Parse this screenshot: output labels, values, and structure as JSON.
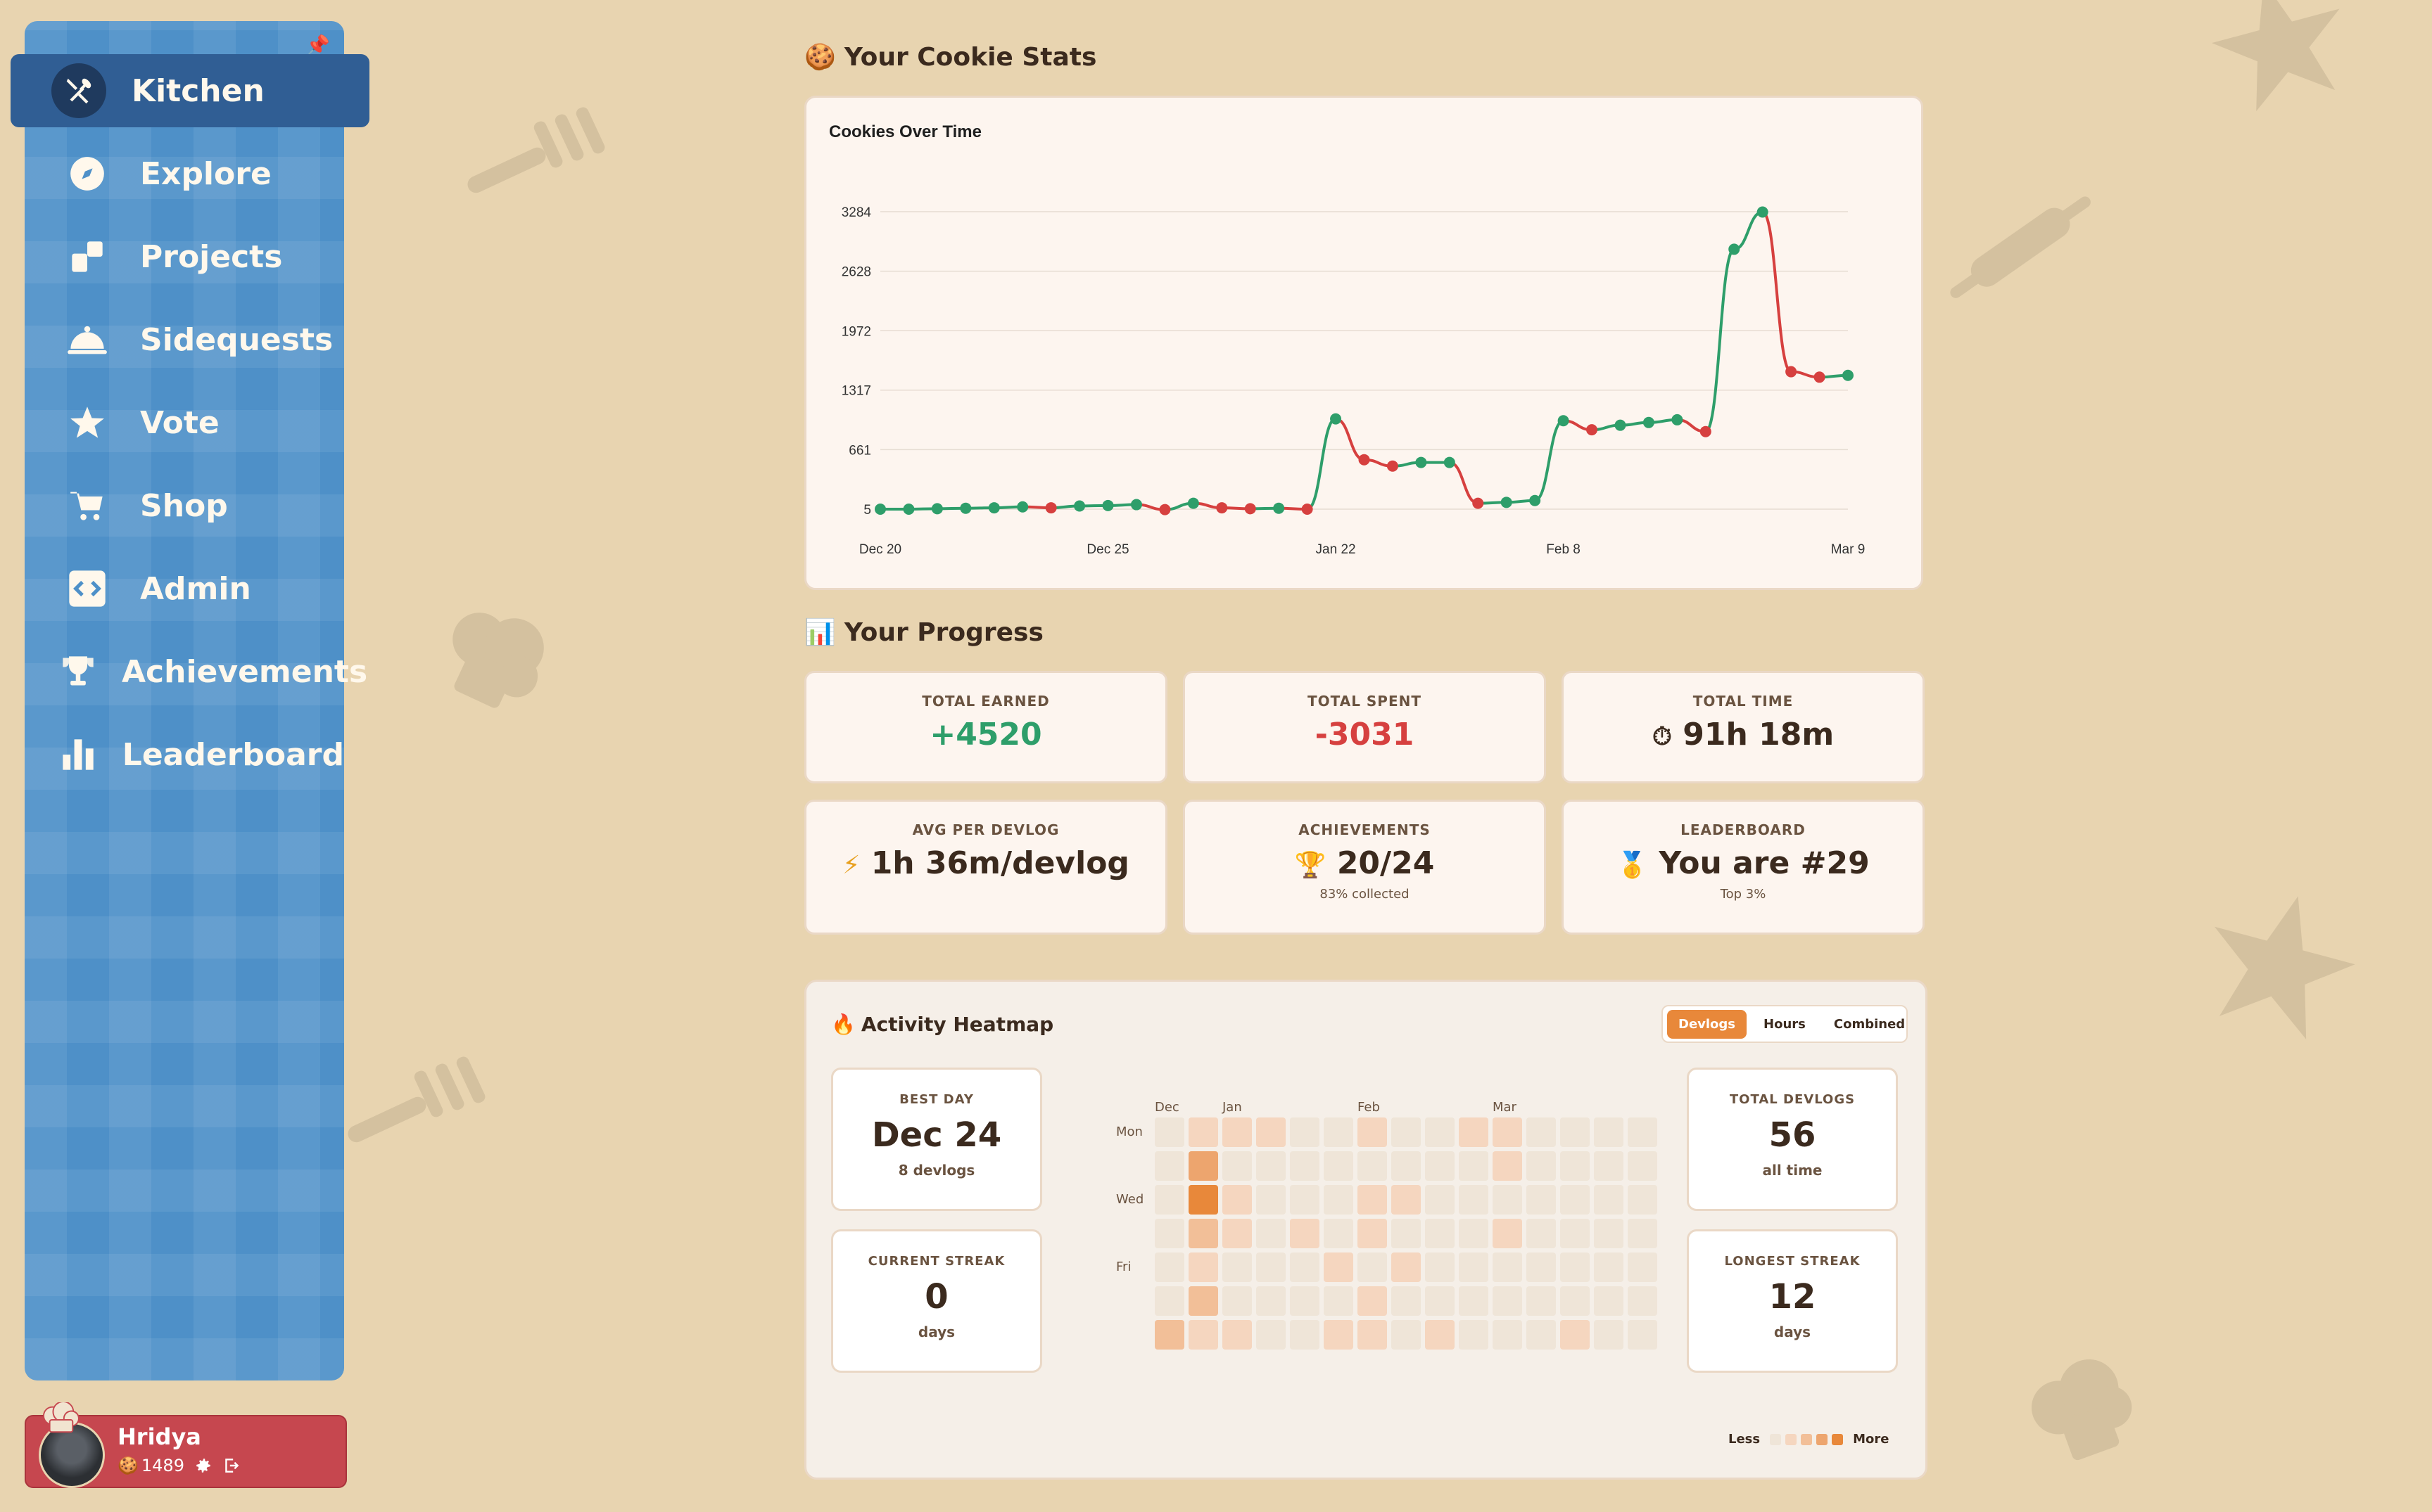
{
  "sidebar": {
    "items": [
      {
        "label": "Kitchen",
        "icon": "utensils-icon",
        "active": true
      },
      {
        "label": "Explore",
        "icon": "compass-icon"
      },
      {
        "label": "Projects",
        "icon": "projects-icon"
      },
      {
        "label": "Sidequests",
        "icon": "cloche-icon"
      },
      {
        "label": "Vote",
        "icon": "star-icon"
      },
      {
        "label": "Shop",
        "icon": "cart-icon"
      },
      {
        "label": "Admin",
        "icon": "code-icon"
      },
      {
        "label": "Achievements",
        "icon": "trophy-icon"
      },
      {
        "label": "Leaderboard",
        "icon": "bar-chart-icon"
      }
    ],
    "pin_icon": "pin-icon"
  },
  "user": {
    "name": "Hridya",
    "cookies": "1489",
    "cookie_icon": "🍪"
  },
  "stats_section": {
    "title": "Your Cookie Stats",
    "emoji": "🍪"
  },
  "chart_data": {
    "type": "line",
    "title": "Cookies Over Time",
    "y_ticks": [
      "5",
      "661",
      "1317",
      "1972",
      "2628",
      "3284"
    ],
    "ylim": [
      5,
      3284
    ],
    "x_ticks": [
      "Dec 20",
      "Dec 25",
      "Jan 22",
      "Feb 8",
      "Mar 9"
    ],
    "values": [
      5,
      5,
      10,
      15,
      20,
      30,
      20,
      40,
      45,
      55,
      0,
      70,
      20,
      10,
      15,
      5,
      1000,
      550,
      480,
      520,
      520,
      70,
      80,
      100,
      980,
      880,
      930,
      960,
      990,
      860,
      2870,
      3280,
      1520,
      1460,
      1480
    ],
    "colors": {
      "up": "#2e9e6a",
      "down": "#d6403f"
    },
    "grid": true
  },
  "progress_section": {
    "title": "Your Progress",
    "emoji": "📊"
  },
  "progress": {
    "total_earned": {
      "label": "TOTAL EARNED",
      "value": "+4520"
    },
    "total_spent": {
      "label": "TOTAL SPENT",
      "value": "-3031"
    },
    "total_time": {
      "label": "TOTAL TIME",
      "value": "91h 18m",
      "emoji": "⏱"
    },
    "avg": {
      "label": "AVG PER DEVLOG",
      "value": "1h 36m/devlog",
      "emoji": "⚡"
    },
    "achievements": {
      "label": "ACHIEVEMENTS",
      "value": "20/24",
      "emoji": "🏆",
      "sub": "83% collected"
    },
    "leaderboard": {
      "label": "LEADERBOARD",
      "value": "You are #29",
      "emoji": "🥇",
      "sub": "Top 3%"
    }
  },
  "heatmap": {
    "title": "Activity Heatmap",
    "emoji": "🔥",
    "tabs": [
      "Devlogs",
      "Hours",
      "Combined"
    ],
    "active_tab": "Devlogs",
    "best_day": {
      "label": "BEST DAY",
      "value": "Dec 24",
      "sub": "8 devlogs"
    },
    "current_streak": {
      "label": "CURRENT STREAK",
      "value": "0",
      "sub": "days"
    },
    "total_devlogs": {
      "label": "TOTAL DEVLOGS",
      "value": "56",
      "sub": "all time"
    },
    "longest_streak": {
      "label": "LONGEST STREAK",
      "value": "12",
      "sub": "days"
    },
    "months": [
      "Dec",
      "Jan",
      "Feb",
      "Mar"
    ],
    "days": [
      "Mon",
      "Wed",
      "Fri"
    ],
    "legend_less": "Less",
    "legend_more": "More",
    "levels": [
      "#efe5d8",
      "#f5d6bf",
      "#f2bf98",
      "#eda56e",
      "#e8883a"
    ],
    "grid": [
      [
        0,
        1,
        1,
        1,
        0,
        0,
        1,
        0,
        0,
        1,
        1,
        0,
        0,
        0,
        0
      ],
      [
        0,
        3,
        0,
        0,
        0,
        0,
        0,
        0,
        0,
        0,
        1,
        0,
        0,
        0,
        0
      ],
      [
        0,
        4,
        1,
        0,
        0,
        0,
        1,
        1,
        0,
        0,
        0,
        0,
        0,
        0,
        0
      ],
      [
        0,
        2,
        1,
        0,
        1,
        0,
        1,
        0,
        0,
        0,
        1,
        0,
        0,
        0,
        0
      ],
      [
        0,
        1,
        0,
        0,
        0,
        1,
        0,
        1,
        0,
        0,
        0,
        0,
        0,
        0,
        0
      ],
      [
        0,
        2,
        0,
        0,
        0,
        0,
        1,
        0,
        0,
        0,
        0,
        0,
        0,
        0,
        0
      ],
      [
        2,
        1,
        1,
        0,
        0,
        1,
        1,
        0,
        1,
        0,
        0,
        0,
        1,
        0,
        0
      ]
    ]
  }
}
